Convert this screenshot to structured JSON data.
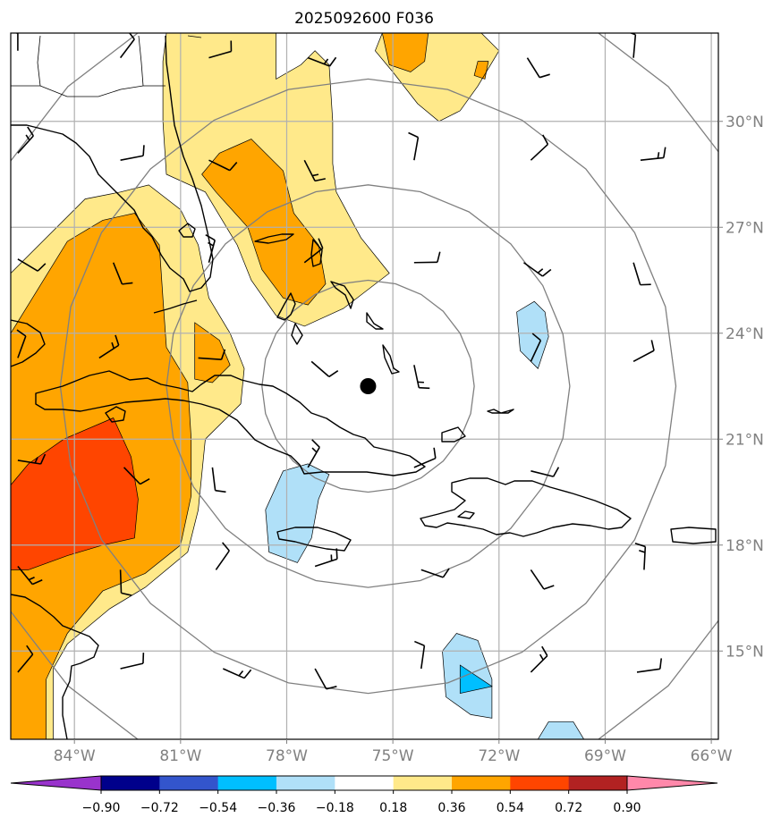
{
  "chart_data": {
    "type": "heatmap",
    "title": "2025092600 F036",
    "x_axis": {
      "ticks": [
        -84,
        -81,
        -78,
        -75,
        -72,
        -69,
        -66
      ],
      "tick_labels": [
        "84°W",
        "81°W",
        "78°W",
        "75°W",
        "72°W",
        "69°W",
        "66°W"
      ],
      "range": [
        -85.8,
        -65.8
      ]
    },
    "y_axis": {
      "ticks": [
        15,
        18,
        21,
        24,
        27,
        30
      ],
      "tick_labels": [
        "15°N",
        "18°N",
        "21°N",
        "24°N",
        "27°N",
        "30°N"
      ],
      "range": [
        12.5,
        32.5
      ]
    },
    "grid": true,
    "center_marker": {
      "lon": -75.7,
      "lat": 22.5
    },
    "range_rings_deg": [
      3,
      5.7,
      8.7,
      12
    ],
    "colorbar": {
      "orientation": "horizontal",
      "extend": "both",
      "boundaries": [
        -0.9,
        -0.72,
        -0.54,
        -0.36,
        -0.18,
        0.18,
        0.36,
        0.54,
        0.72,
        0.9
      ],
      "labels": [
        "−0.90",
        "−0.72",
        "−0.54",
        "−0.36",
        "−0.18",
        "0.18",
        "0.36",
        "0.54",
        "0.72",
        "0.90"
      ],
      "colors": [
        "#9933cc",
        "#00008b",
        "#3355cc",
        "#00bfff",
        "#b0e0f8",
        "#ffffff",
        "#ffe98a",
        "#ffa500",
        "#ff4500",
        "#b22222",
        "#ff88aa"
      ]
    },
    "filled_regions": [
      {
        "level": 0.18,
        "color": "#ffe98a",
        "points": [
          [
            -84.5,
            27
          ],
          [
            -83.7,
            27.8
          ],
          [
            -82.7,
            28
          ],
          [
            -81.9,
            28.2
          ],
          [
            -81,
            27.5
          ],
          [
            -80.5,
            26.5
          ],
          [
            -80.2,
            25
          ],
          [
            -79.6,
            24
          ],
          [
            -79.2,
            23
          ],
          [
            -79.3,
            22
          ],
          [
            -80.3,
            21
          ],
          [
            -80.5,
            19
          ],
          [
            -80.8,
            17.8
          ],
          [
            -82,
            16.8
          ],
          [
            -83,
            16.2
          ],
          [
            -84.2,
            15.2
          ],
          [
            -84.6,
            14.5
          ],
          [
            -84.6,
            12.5
          ],
          [
            -85.8,
            12.5
          ],
          [
            -85.8,
            25.7
          ]
        ]
      },
      {
        "level": 0.18,
        "color": "#ffe98a",
        "points": [
          [
            -81.4,
            32.5
          ],
          [
            -78.3,
            32.5
          ],
          [
            -78.3,
            31.2
          ],
          [
            -77.6,
            31.6
          ],
          [
            -77.2,
            32
          ],
          [
            -76.8,
            31.6
          ],
          [
            -76.7,
            30
          ],
          [
            -76.7,
            28.8
          ],
          [
            -76.6,
            28
          ],
          [
            -75.9,
            26.7
          ],
          [
            -75.1,
            25.7
          ],
          [
            -76.4,
            24.7
          ],
          [
            -77.5,
            24.2
          ],
          [
            -78.3,
            24.5
          ],
          [
            -79,
            25.5
          ],
          [
            -79.4,
            26.5
          ],
          [
            -80.3,
            28
          ],
          [
            -81.4,
            28.5
          ],
          [
            -81.5,
            30
          ],
          [
            -81.5,
            31.7
          ]
        ]
      },
      {
        "level": 0.18,
        "color": "#ffe98a",
        "points": [
          [
            -75.3,
            32.5
          ],
          [
            -72.5,
            32.5
          ],
          [
            -72,
            32
          ],
          [
            -72.6,
            31
          ],
          [
            -73.1,
            30.3
          ],
          [
            -73.7,
            30
          ],
          [
            -74.3,
            30.5
          ],
          [
            -75,
            31.4
          ],
          [
            -75.5,
            32
          ]
        ]
      },
      {
        "level": 0.36,
        "color": "#ffa500",
        "points": [
          [
            -84.2,
            26.6
          ],
          [
            -83.2,
            27.2
          ],
          [
            -82.3,
            27.4
          ],
          [
            -81.6,
            26.5
          ],
          [
            -81.5,
            25
          ],
          [
            -81.4,
            23.6
          ],
          [
            -80.8,
            22.6
          ],
          [
            -80.7,
            21
          ],
          [
            -80.7,
            19.4
          ],
          [
            -81,
            18
          ],
          [
            -82,
            17.2
          ],
          [
            -83.2,
            16.7
          ],
          [
            -84.2,
            15.5
          ],
          [
            -84.8,
            14.2
          ],
          [
            -84.8,
            12.5
          ],
          [
            -85.8,
            12.5
          ],
          [
            -85.8,
            24
          ]
        ]
      },
      {
        "level": 0.36,
        "color": "#ffa500",
        "points": [
          [
            -80.6,
            24.3
          ],
          [
            -79.9,
            23.8
          ],
          [
            -79.6,
            23.1
          ],
          [
            -80.1,
            22.6
          ],
          [
            -80.6,
            22.7
          ]
        ]
      },
      {
        "level": 0.36,
        "color": "#ffa500",
        "points": [
          [
            -80.4,
            28.5
          ],
          [
            -79.9,
            29.1
          ],
          [
            -79,
            29.5
          ],
          [
            -78.1,
            28.6
          ],
          [
            -77.8,
            27.4
          ],
          [
            -77.1,
            26.5
          ],
          [
            -76.9,
            25.4
          ],
          [
            -77.4,
            24.8
          ],
          [
            -78.1,
            25
          ],
          [
            -78.7,
            25.8
          ],
          [
            -79.1,
            27
          ],
          [
            -80,
            28
          ]
        ]
      },
      {
        "level": 0.36,
        "color": "#ffa500",
        "points": [
          [
            -75.3,
            32.5
          ],
          [
            -74,
            32.5
          ],
          [
            -74.1,
            31.7
          ],
          [
            -74.5,
            31.4
          ],
          [
            -75.1,
            31.6
          ]
        ]
      },
      {
        "level": 0.36,
        "color": "#ffa500",
        "points": [
          [
            -72.6,
            31.7
          ],
          [
            -72.3,
            31.7
          ],
          [
            -72.4,
            31.2
          ],
          [
            -72.7,
            31.3
          ]
        ]
      },
      {
        "level": 0.54,
        "color": "#ff4500",
        "points": [
          [
            -85.8,
            19.7
          ],
          [
            -85.3,
            20.3
          ],
          [
            -84.3,
            21
          ],
          [
            -82.9,
            21.6
          ],
          [
            -82.4,
            20.5
          ],
          [
            -82.2,
            19.3
          ],
          [
            -82.3,
            18.2
          ],
          [
            -83.2,
            18
          ],
          [
            -84.2,
            17.7
          ],
          [
            -85.3,
            17.3
          ],
          [
            -85.8,
            17.3
          ]
        ]
      },
      {
        "level": -0.18,
        "color": "#b0e0f8",
        "points": [
          [
            -78.1,
            20.1
          ],
          [
            -77.4,
            20.3
          ],
          [
            -76.8,
            20
          ],
          [
            -77.1,
            19.3
          ],
          [
            -77.3,
            18.2
          ],
          [
            -77.7,
            17.5
          ],
          [
            -78.5,
            17.8
          ],
          [
            -78.6,
            19
          ]
        ]
      },
      {
        "level": -0.18,
        "color": "#b0e0f8",
        "points": [
          [
            -71,
            24.9
          ],
          [
            -70.7,
            24.6
          ],
          [
            -70.6,
            23.9
          ],
          [
            -70.9,
            23
          ],
          [
            -71.4,
            23.5
          ],
          [
            -71.5,
            24.6
          ]
        ]
      },
      {
        "level": -0.18,
        "color": "#b0e0f8",
        "points": [
          [
            -73.2,
            15.5
          ],
          [
            -72.6,
            15.3
          ],
          [
            -72.2,
            14.2
          ],
          [
            -72.2,
            13.1
          ],
          [
            -72.8,
            13.2
          ],
          [
            -73.5,
            13.7
          ],
          [
            -73.6,
            15
          ]
        ]
      },
      {
        "level": -0.18,
        "color": "#b0e0f8",
        "points": [
          [
            -70.6,
            13
          ],
          [
            -69.9,
            13
          ],
          [
            -69.6,
            12.5
          ],
          [
            -70.9,
            12.5
          ]
        ]
      },
      {
        "level": -0.36,
        "color": "#00bfff",
        "points": [
          [
            -73.1,
            14.6
          ],
          [
            -72.2,
            14
          ],
          [
            -73.1,
            13.8
          ]
        ]
      }
    ],
    "wind_barbs": [
      {
        "lon": -85.6,
        "lat": 32
      },
      {
        "lon": -82.7,
        "lat": 31.8
      },
      {
        "lon": -80.2,
        "lat": 31.8
      },
      {
        "lon": -77.4,
        "lat": 31.8
      },
      {
        "lon": -71.2,
        "lat": 31.8
      },
      {
        "lon": -68.2,
        "lat": 31.8
      },
      {
        "lon": -85.6,
        "lat": 29.1
      },
      {
        "lon": -82.7,
        "lat": 28.9
      },
      {
        "lon": -80.2,
        "lat": 28.9
      },
      {
        "lon": -77.5,
        "lat": 28.9
      },
      {
        "lon": -74.4,
        "lat": 28.9
      },
      {
        "lon": -71.1,
        "lat": 28.9
      },
      {
        "lon": -68,
        "lat": 28.9
      },
      {
        "lon": -85.6,
        "lat": 26.1
      },
      {
        "lon": -82.9,
        "lat": 26
      },
      {
        "lon": -80.2,
        "lat": 26
      },
      {
        "lon": -77.5,
        "lat": 26
      },
      {
        "lon": -74.4,
        "lat": 26
      },
      {
        "lon": -71.3,
        "lat": 26
      },
      {
        "lon": -68.2,
        "lat": 26
      },
      {
        "lon": -85.6,
        "lat": 23.3
      },
      {
        "lon": -83.3,
        "lat": 23.3
      },
      {
        "lon": -80.5,
        "lat": 23.3
      },
      {
        "lon": -77.3,
        "lat": 23.2
      },
      {
        "lon": -74.4,
        "lat": 23.1
      },
      {
        "lon": -71.1,
        "lat": 23.2
      },
      {
        "lon": -68.2,
        "lat": 23.2
      },
      {
        "lon": -85.6,
        "lat": 20.4
      },
      {
        "lon": -82.6,
        "lat": 20.2
      },
      {
        "lon": -80.1,
        "lat": 20.2
      },
      {
        "lon": -77.4,
        "lat": 20.2
      },
      {
        "lon": -74.4,
        "lat": 20.2
      },
      {
        "lon": -71.1,
        "lat": 20.1
      },
      {
        "lon": -85.6,
        "lat": 17.4
      },
      {
        "lon": -82.7,
        "lat": 17.3
      },
      {
        "lon": -80,
        "lat": 17.3
      },
      {
        "lon": -77.2,
        "lat": 17.4
      },
      {
        "lon": -74.2,
        "lat": 17.3
      },
      {
        "lon": -71.1,
        "lat": 17.3
      },
      {
        "lon": -67.9,
        "lat": 17.3
      },
      {
        "lon": -85.6,
        "lat": 14.4
      },
      {
        "lon": -82.7,
        "lat": 14.5
      },
      {
        "lon": -79.8,
        "lat": 14.5
      },
      {
        "lon": -77.2,
        "lat": 14.5
      },
      {
        "lon": -74.2,
        "lat": 14.5
      },
      {
        "lon": -71.1,
        "lat": 14.4
      },
      {
        "lon": -68.1,
        "lat": 14.4
      }
    ]
  }
}
